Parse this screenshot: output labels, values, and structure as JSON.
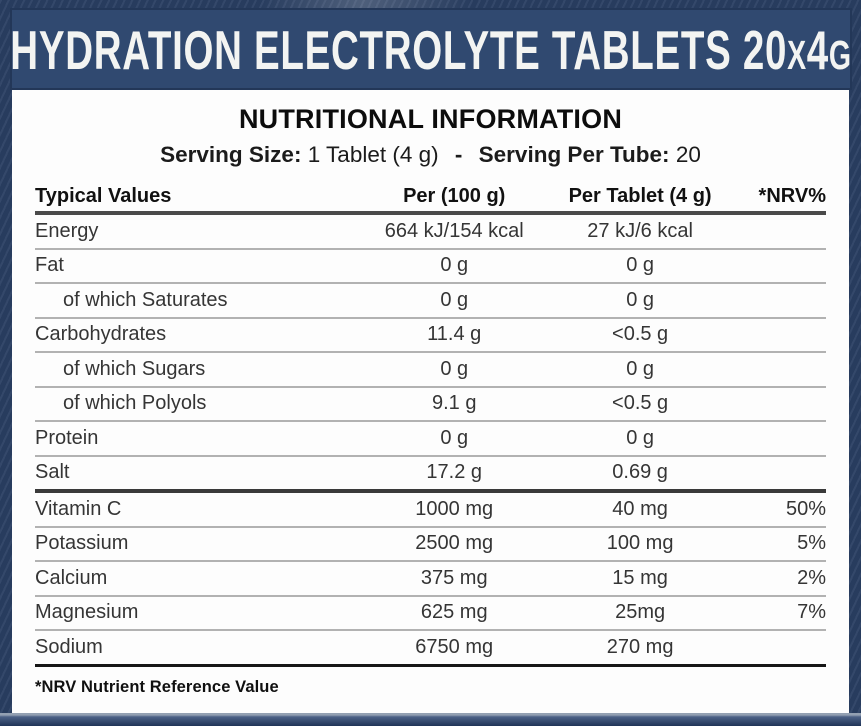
{
  "header": {
    "title_parts": [
      "HYDRATION ELECTROLYTE TABLETS 20",
      "X",
      "4",
      "G"
    ]
  },
  "panel": {
    "title": "NUTRITIONAL INFORMATION",
    "serving": {
      "size_label": "Serving Size:",
      "size_value": "1 Tablet (4 g)",
      "separator": "-",
      "per_tube_label": "Serving Per Tube:",
      "per_tube_value": "20"
    },
    "footnote": "*NRV Nutrient Reference Value"
  },
  "table": {
    "columns": [
      "Typical Values",
      "Per (100 g)",
      "Per Tablet (4 g)",
      "*NRV%"
    ],
    "rows": [
      {
        "name": "Energy",
        "per100": "664 kJ/154 kcal",
        "perTablet": "27 kJ/6 kcal",
        "nrv": "",
        "indent": false,
        "divider": "thin"
      },
      {
        "name": "Fat",
        "per100": "0 g",
        "perTablet": "0 g",
        "nrv": "",
        "indent": false,
        "divider": "thin"
      },
      {
        "name": "of which Saturates",
        "per100": "0 g",
        "perTablet": "0 g",
        "nrv": "",
        "indent": true,
        "divider": "thin"
      },
      {
        "name": "Carbohydrates",
        "per100": "11.4 g",
        "perTablet": "<0.5 g",
        "nrv": "",
        "indent": false,
        "divider": "thin"
      },
      {
        "name": "of which Sugars",
        "per100": "0 g",
        "perTablet": "0 g",
        "nrv": "",
        "indent": true,
        "divider": "thin"
      },
      {
        "name": "of which Polyols",
        "per100": "9.1 g",
        "perTablet": "<0.5 g",
        "nrv": "",
        "indent": true,
        "divider": "thin"
      },
      {
        "name": "Protein",
        "per100": "0 g",
        "perTablet": "0 g",
        "nrv": "",
        "indent": false,
        "divider": "thin"
      },
      {
        "name": "Salt",
        "per100": "17.2 g",
        "perTablet": "0.69 g",
        "nrv": "",
        "indent": false,
        "divider": "heavy"
      },
      {
        "name": "Vitamin C",
        "per100": "1000 mg",
        "perTablet": "40 mg",
        "nrv": "50%",
        "indent": false,
        "divider": "thin"
      },
      {
        "name": "Potassium",
        "per100": "2500 mg",
        "perTablet": "100 mg",
        "nrv": "5%",
        "indent": false,
        "divider": "thin"
      },
      {
        "name": "Calcium",
        "per100": "375 mg",
        "perTablet": "15 mg",
        "nrv": "2%",
        "indent": false,
        "divider": "thin"
      },
      {
        "name": "Magnesium",
        "per100": "625 mg",
        "perTablet": "25mg",
        "nrv": "7%",
        "indent": false,
        "divider": "thin"
      },
      {
        "name": "Sodium",
        "per100": "6750 mg",
        "perTablet": "270 mg",
        "nrv": "",
        "indent": false,
        "divider": "end"
      }
    ]
  },
  "colors": {
    "background_navy": "#293e62",
    "header_bar_navy": "#304970",
    "panel_white": "#fdfdfd",
    "text_dark": "#353535",
    "rule_thin": "#b2b2b2",
    "rule_heavy": "#3a3a3a"
  }
}
